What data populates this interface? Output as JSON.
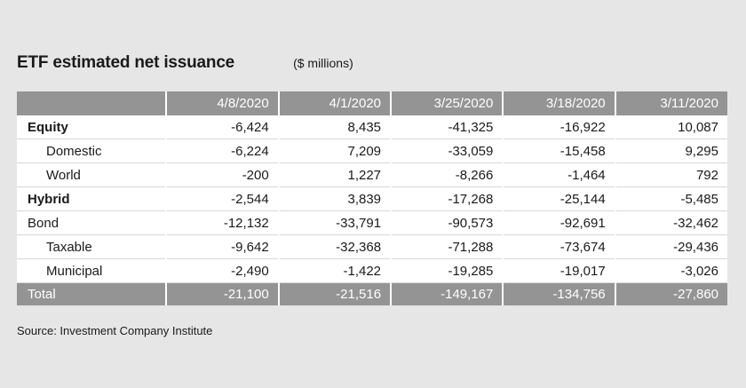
{
  "title": "ETF estimated net issuance",
  "subtitle": "($ millions)",
  "table": {
    "columns": [
      "4/8/2020",
      "4/1/2020",
      "3/25/2020",
      "3/18/2020",
      "3/11/2020"
    ],
    "rows": [
      {
        "label": "Equity",
        "values": [
          "-6,424",
          "8,435",
          "-41,325",
          "-16,922",
          "10,087"
        ]
      },
      {
        "label": "Domestic",
        "values": [
          "-6,224",
          "7,209",
          "-33,059",
          "-15,458",
          "9,295"
        ]
      },
      {
        "label": "World",
        "values": [
          "-200",
          "1,227",
          "-8,266",
          "-1,464",
          "792"
        ]
      },
      {
        "label": "Hybrid",
        "values": [
          "-2,544",
          "3,839",
          "-17,268",
          "-25,144",
          "-5,485"
        ]
      },
      {
        "label": "Bond",
        "values": [
          "-12,132",
          "-33,791",
          "-90,573",
          "-92,691",
          "-32,462"
        ]
      },
      {
        "label": "Taxable",
        "values": [
          "-9,642",
          "-32,368",
          "-71,288",
          "-73,674",
          "-29,436"
        ]
      },
      {
        "label": "Municipal",
        "values": [
          "-2,490",
          "-1,422",
          "-19,285",
          "-19,017",
          "-3,026"
        ]
      },
      {
        "label": "Total",
        "values": [
          "-21,100",
          "-21,516",
          "-149,167",
          "-134,756",
          "-27,860"
        ]
      }
    ]
  },
  "source": "Source: Investment Company Institute",
  "colors": {
    "header_bg": "#949494",
    "page_bg": "#e6e6e6",
    "cell_bg": "#ffffff"
  }
}
